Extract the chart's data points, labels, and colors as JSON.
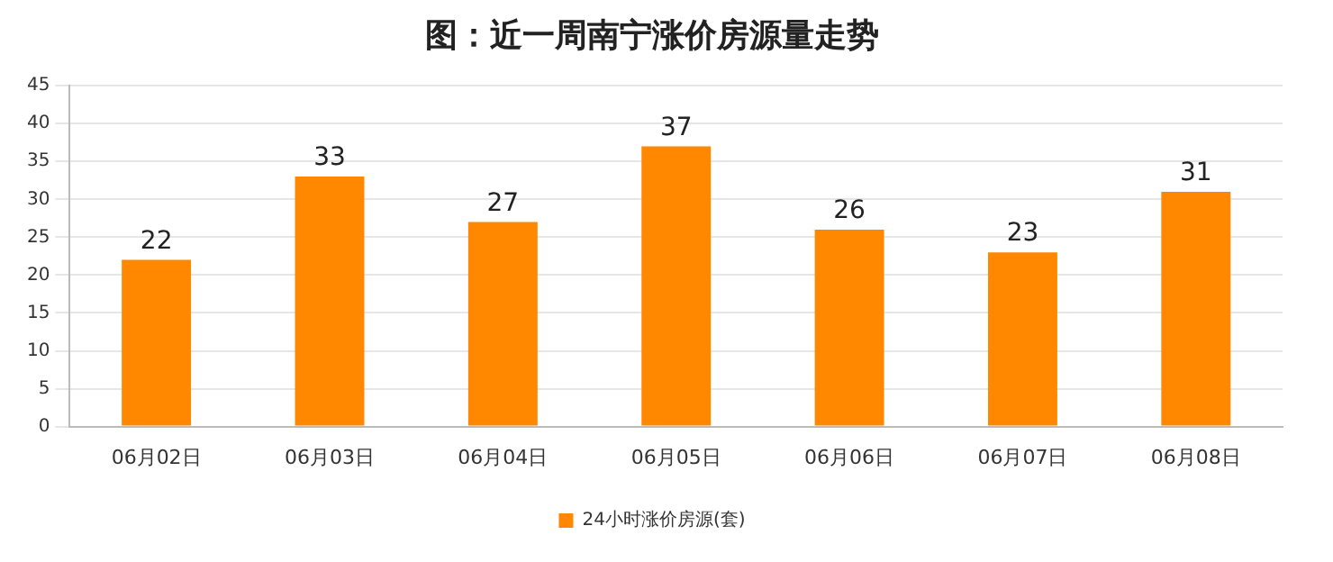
{
  "chart_data": {
    "type": "bar",
    "title": "图：近一周南宁涨价房源量走势",
    "categories": [
      "06月02日",
      "06月03日",
      "06月04日",
      "06月05日",
      "06月06日",
      "06月07日",
      "06月08日"
    ],
    "series": [
      {
        "name": "24小时涨价房源(套)",
        "color": "#ff8800",
        "values": [
          22,
          33,
          27,
          37,
          26,
          23,
          31
        ]
      }
    ],
    "ylim": [
      0,
      45
    ],
    "yticks": [
      0,
      5,
      10,
      15,
      20,
      25,
      30,
      35,
      40,
      45
    ],
    "grid": "y",
    "legend": "bottom",
    "data_labels": true
  }
}
